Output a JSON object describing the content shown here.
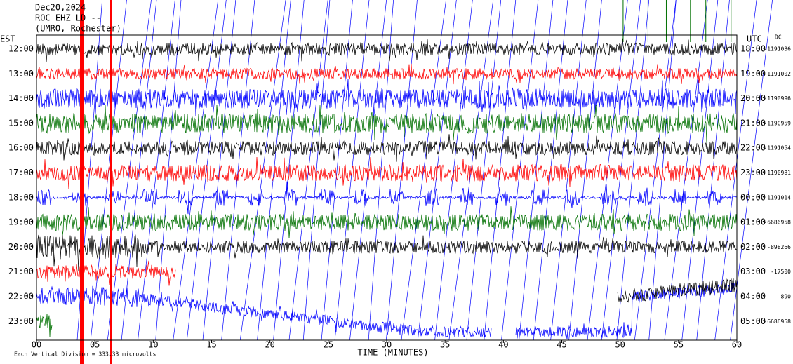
{
  "header": {
    "date": "Dec20,2024",
    "station": "ROC EHZ LD --",
    "location": "(UMRO, Rochester)"
  },
  "left_axis": {
    "label": "EST",
    "times": [
      "12:00",
      "13:00",
      "14:00",
      "15:00",
      "16:00",
      "17:00",
      "18:00",
      "19:00",
      "20:00",
      "21:00",
      "22:00",
      "23:00"
    ]
  },
  "right_axis": {
    "label": "UTC",
    "dc_label": "DC",
    "times": [
      "18:00",
      "19:00",
      "20:00",
      "21:00",
      "22:00",
      "23:00",
      "00:00",
      "01:00",
      "02:00",
      "03:00",
      "04:00",
      "05:00"
    ],
    "dc_values": [
      "-1191036",
      "-1191002",
      "-1190996",
      "-1190959",
      "-1191054",
      "-1190981",
      "-1191014",
      "-6686958",
      "-898266",
      "-17500",
      "890",
      "-6686958"
    ]
  },
  "x_axis": {
    "ticks": [
      "00",
      "05",
      "10",
      "15",
      "20",
      "25",
      "30",
      "35",
      "40",
      "45",
      "50",
      "55",
      "60"
    ],
    "label": "TIME (MINUTES)"
  },
  "footer": {
    "scale_note": "Each Vertical Division = 333.33 microvolts"
  }
}
